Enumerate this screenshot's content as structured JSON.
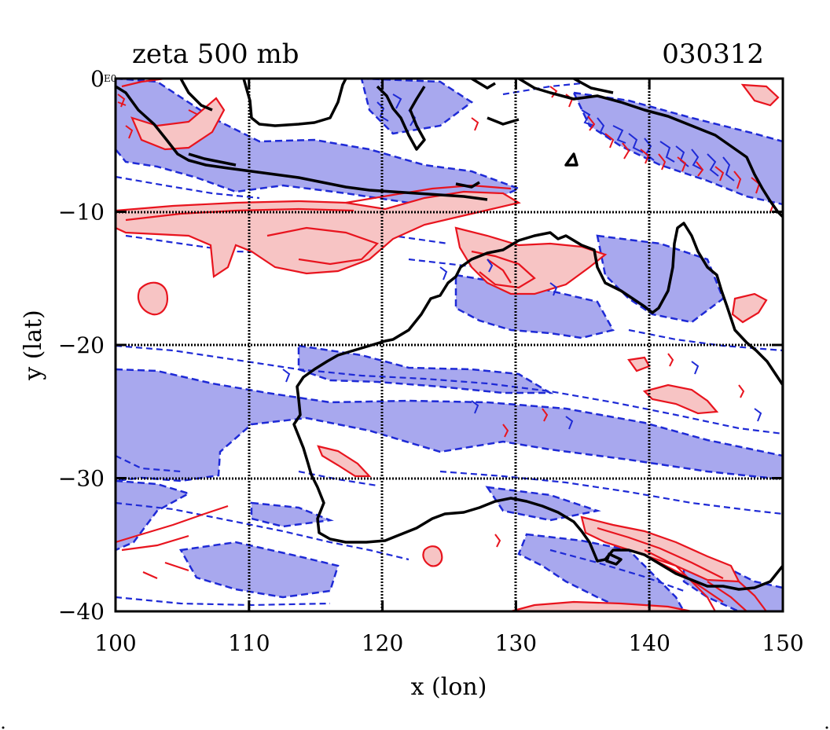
{
  "chart_data": {
    "type": "contour",
    "title": "zeta 500 mb",
    "date_label": "030312",
    "xlabel": "x (lon)",
    "ylabel": "y (lat)",
    "xlim": [
      100,
      150
    ],
    "ylim": [
      -40,
      0
    ],
    "x_ticks": [
      100,
      110,
      120,
      130,
      140,
      150
    ],
    "x_tick_labels": [
      "100",
      "110",
      "120",
      "130",
      "140",
      "150"
    ],
    "y_ticks": [
      0,
      -10,
      -20,
      -30,
      -40
    ],
    "y_tick_labels": [
      "0",
      "−10",
      "−20",
      "−30",
      "−40"
    ],
    "corner_label": "E0",
    "grid": true,
    "fields": {
      "positive_vorticity": {
        "color": "#e8141e",
        "fill": "#f7c4c4",
        "linestyle": "solid"
      },
      "negative_vorticity": {
        "color": "#1e2ad6",
        "fill": "#a8a8ee",
        "linestyle": "dashed"
      },
      "coastline": {
        "color": "#000000"
      }
    }
  }
}
